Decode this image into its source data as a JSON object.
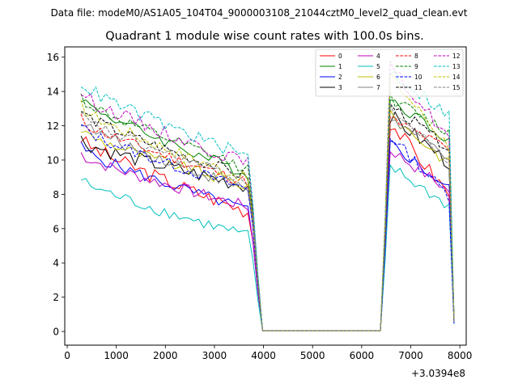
{
  "chart_data": {
    "type": "line",
    "suptitle": "Data file: modeM0/AS1A05_104T04_9000003108_21044cztM0_level2_quad_clean.evt",
    "title": "Quadrant 1 module wise count rates with 100.0s bins.",
    "xlabel": "",
    "ylabel": "",
    "x_offset_text": "+3.0394e8",
    "xlim": [
      -50,
      8130
    ],
    "ylim": [
      -0.8,
      16.6
    ],
    "xticks": [
      0,
      1000,
      2000,
      3000,
      4000,
      5000,
      6000,
      7000,
      8000
    ],
    "yticks": [
      0,
      2,
      4,
      6,
      8,
      10,
      12,
      14,
      16
    ],
    "xtick_labels": [
      "0",
      "1000",
      "2000",
      "3000",
      "4000",
      "5000",
      "6000",
      "7000",
      "8000"
    ],
    "ytick_labels": [
      "0",
      "2",
      "4",
      "6",
      "8",
      "10",
      "12",
      "14",
      "16"
    ],
    "legend_location": "top-right",
    "segments": [
      {
        "x_start": 282,
        "x_end": 3782,
        "high_start": 0.25,
        "low_start": 0.65,
        "drop_to": 0.35
      },
      {
        "x_start": 6582,
        "x_end": 7782,
        "high_start": 0.0,
        "low_start": 0.7,
        "drop_to": 0.04
      }
    ],
    "series": [
      {
        "name": "0",
        "color": "#ff0000",
        "dash": "solid",
        "start": 11.3,
        "end": 6.9,
        "peak2": 12.2,
        "end2": 8.0,
        "noise": 0.45
      },
      {
        "name": "1",
        "color": "#008000",
        "dash": "solid",
        "start": 13.7,
        "end": 9.1,
        "peak2": 13.6,
        "end2": 11.2,
        "noise": 0.35
      },
      {
        "name": "2",
        "color": "#0000ff",
        "dash": "solid",
        "start": 10.8,
        "end": 7.0,
        "peak2": 11.0,
        "end2": 8.3,
        "noise": 0.35
      },
      {
        "name": "3",
        "color": "#000000",
        "dash": "solid",
        "start": 11.2,
        "end": 8.4,
        "peak2": 12.6,
        "end2": 9.8,
        "noise": 0.45
      },
      {
        "name": "4",
        "color": "#bf00bf",
        "dash": "solid",
        "start": 10.4,
        "end": 7.2,
        "peak2": 10.6,
        "end2": 8.2,
        "noise": 0.35
      },
      {
        "name": "5",
        "color": "#00bfbf",
        "dash": "solid",
        "start": 8.9,
        "end": 5.5,
        "peak2": 9.6,
        "end2": 7.3,
        "noise": 0.35
      },
      {
        "name": "6",
        "color": "#bfbf00",
        "dash": "solid",
        "start": 11.8,
        "end": 8.4,
        "peak2": 12.6,
        "end2": 9.8,
        "noise": 0.35
      },
      {
        "name": "7",
        "color": "#808080",
        "dash": "solid",
        "start": 12.3,
        "end": 8.2,
        "peak2": 12.4,
        "end2": 10.2,
        "noise": 0.35
      },
      {
        "name": "8",
        "color": "#ff0000",
        "dash": "dashed",
        "start": 12.4,
        "end": 8.6,
        "peak2": 12.4,
        "end2": 10.6,
        "noise": 0.35
      },
      {
        "name": "9",
        "color": "#008000",
        "dash": "dashed",
        "start": 13.7,
        "end": 9.4,
        "peak2": 13.6,
        "end2": 11.6,
        "noise": 0.35
      },
      {
        "name": "10",
        "color": "#0000ff",
        "dash": "dashed",
        "start": 12.0,
        "end": 8.2,
        "peak2": 11.4,
        "end2": 7.9,
        "noise": 0.35
      },
      {
        "name": "11",
        "color": "#000000",
        "dash": "dashed",
        "start": 12.9,
        "end": 8.9,
        "peak2": 13.2,
        "end2": 10.7,
        "noise": 0.35
      },
      {
        "name": "12",
        "color": "#bf00bf",
        "dash": "dashed",
        "start": 14.0,
        "end": 9.7,
        "peak2": 15.4,
        "end2": 11.3,
        "noise": 0.4
      },
      {
        "name": "13",
        "color": "#00bfbf",
        "dash": "dashed",
        "start": 14.6,
        "end": 10.1,
        "peak2": 15.2,
        "end2": 12.6,
        "noise": 0.4
      },
      {
        "name": "14",
        "color": "#bfbf00",
        "dash": "dashed",
        "start": 13.2,
        "end": 8.8,
        "peak2": 14.9,
        "end2": 10.8,
        "noise": 0.35
      },
      {
        "name": "15",
        "color": "#808080",
        "dash": "dashed",
        "start": 12.6,
        "end": 8.7,
        "peak2": 13.0,
        "end2": 9.9,
        "noise": 0.35
      }
    ]
  }
}
